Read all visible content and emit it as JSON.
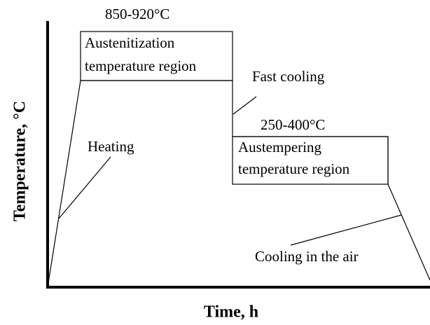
{
  "axes": {
    "y_label": "Temperature, °C",
    "x_label": "Time, h"
  },
  "stages": [
    {
      "range": "850-920°C",
      "label_lines": [
        "Austenitization",
        "temperature region"
      ]
    },
    {
      "range": "250-400°C",
      "label_lines": [
        "Austempering",
        "temperature region"
      ]
    }
  ],
  "annotations": {
    "heating": "Heating",
    "fast_cooling": "Fast cooling",
    "air_cooling": "Cooling in the air"
  }
}
